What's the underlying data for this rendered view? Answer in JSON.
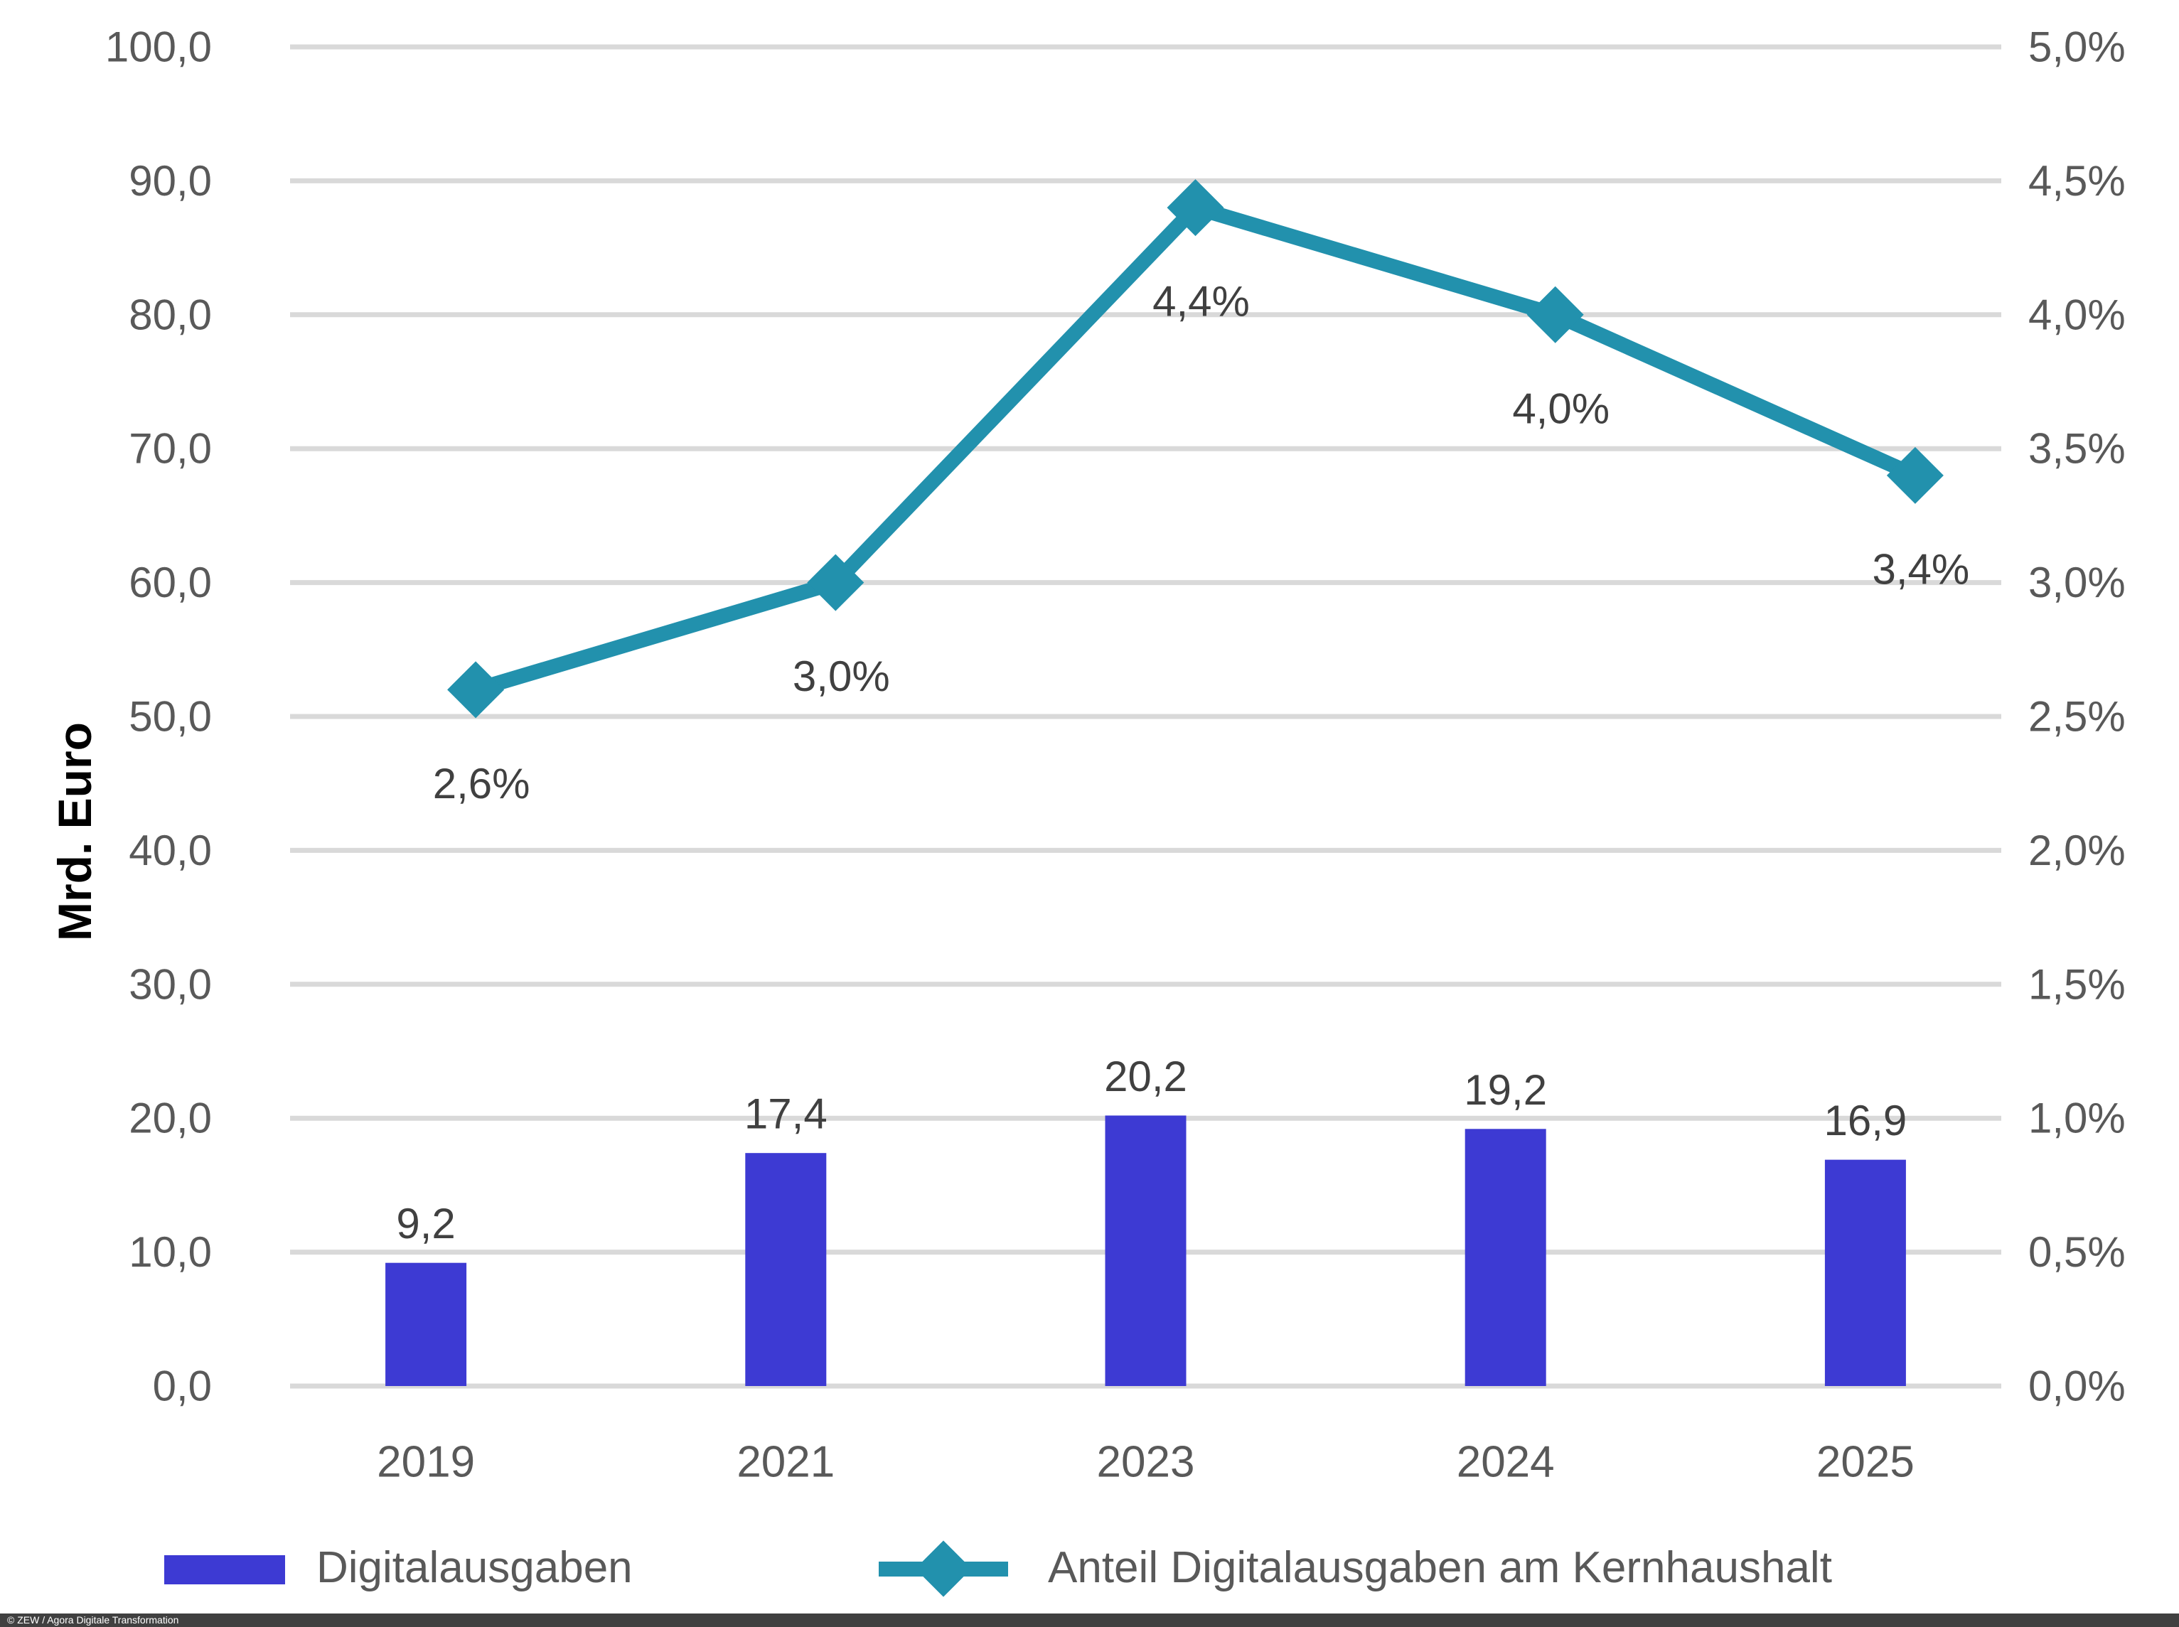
{
  "axis_title_left": "Mrd. Euro",
  "legend": {
    "items": [
      {
        "label": "Digitalausgaben",
        "type": "bar"
      },
      {
        "label": "Anteil Digitalausgaben am Kernhaushalt",
        "type": "line"
      }
    ],
    "position": "bottom"
  },
  "footer": {
    "credit": "© ZEW / Agora Digitale Transformation"
  },
  "colors": {
    "bar": "#3D3AD3",
    "line": "#2291AD",
    "grid": "#D9D9D9",
    "tick_text": "#595959",
    "data_label_text": "#404040",
    "axis_title_text": "#000000",
    "footer_bg": "#404040",
    "footer_text": "#FFFFFF"
  },
  "chart_data": {
    "type": "bar",
    "subtype": "combo-bar-line-dual-axis",
    "categories": [
      "2019",
      "2021",
      "2023",
      "2024",
      "2025"
    ],
    "series": [
      {
        "name": "Digitalausgaben",
        "type": "bar",
        "axis": "left",
        "unit": "Mrd. Euro",
        "values": [
          9.2,
          17.4,
          20.2,
          19.2,
          16.9
        ],
        "labels": [
          "9,2",
          "17,4",
          "20,2",
          "19,2",
          "16,9"
        ],
        "color": "#3D3AD3"
      },
      {
        "name": "Anteil Digitalausgaben am Kernhaushalt",
        "type": "line",
        "axis": "right",
        "unit": "percent",
        "values": [
          2.6,
          3.0,
          4.4,
          4.0,
          3.4
        ],
        "labels": [
          "2,6%",
          "3,0%",
          "4,4%",
          "4,0%",
          "3,4%"
        ],
        "color": "#2291AD",
        "marker": "diamond"
      }
    ],
    "left_axis": {
      "title": "Mrd. Euro",
      "min": 0,
      "max": 100,
      "step": 10,
      "ticks_top_to_bottom": [
        "100,0",
        "90,0",
        "80,0",
        "70,0",
        "60,0",
        "50,0",
        "40,0",
        "30,0",
        "20,0",
        "10,0",
        "0,0"
      ]
    },
    "right_axis": {
      "min": 0,
      "max": 5,
      "step": 0.5,
      "ticks_top_to_bottom": [
        "5,0%",
        "4,5%",
        "4,0%",
        "3,5%",
        "3,0%",
        "2,5%",
        "2,0%",
        "1,5%",
        "1,0%",
        "0,5%",
        "0,0%"
      ]
    },
    "grid": true,
    "legend_position": "bottom"
  }
}
